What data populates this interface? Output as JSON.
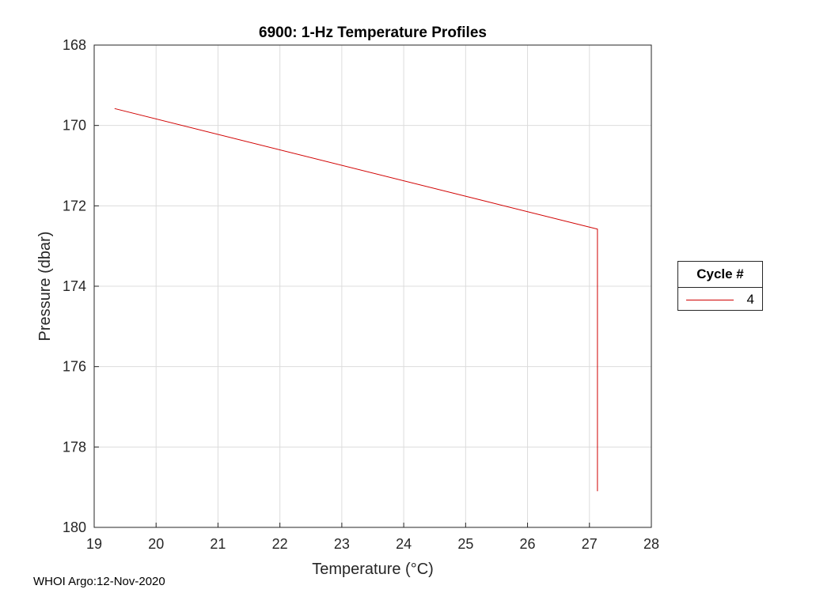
{
  "chart_data": {
    "type": "line",
    "title": "6900: 1-Hz Temperature Profiles",
    "xlabel": "Temperature (°C)",
    "ylabel": "Pressure (dbar)",
    "xlim": [
      19,
      28
    ],
    "ylim": [
      168,
      180
    ],
    "y_reversed": true,
    "grid": true,
    "x_ticks": [
      19,
      20,
      21,
      22,
      23,
      24,
      25,
      26,
      27,
      28
    ],
    "y_ticks": [
      168,
      170,
      172,
      174,
      176,
      178,
      180
    ],
    "series": [
      {
        "name": "4",
        "color": "#d00000",
        "x": [
          19.33,
          27.13,
          27.13
        ],
        "y": [
          169.58,
          172.58,
          179.1
        ]
      }
    ],
    "legend": {
      "title": "Cycle #",
      "entries": [
        "4"
      ],
      "placement": "right-outside"
    }
  },
  "footer": "WHOI Argo:12-Nov-2020"
}
